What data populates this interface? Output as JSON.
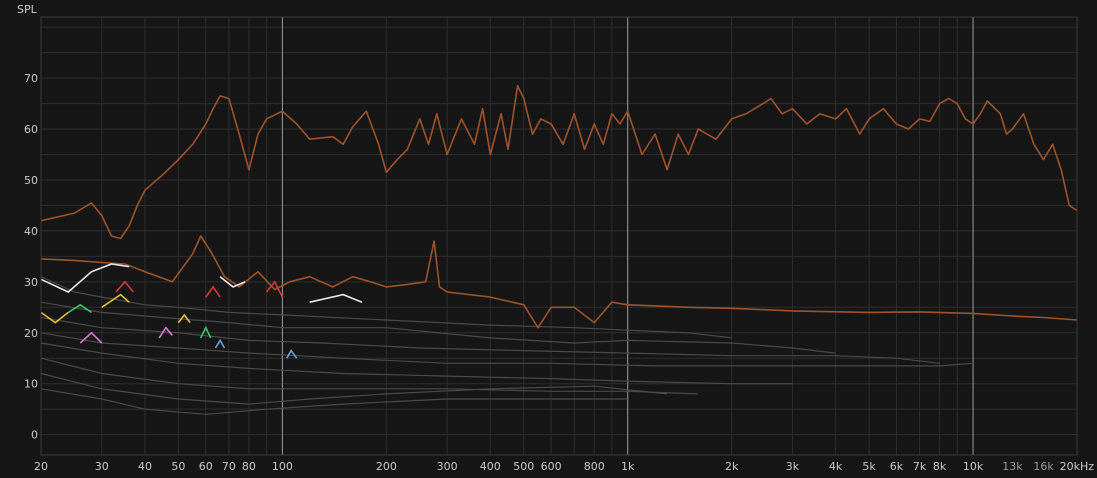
{
  "chart_data": {
    "type": "line",
    "ylabel": "SPL",
    "xscale": "log",
    "xlim": [
      20,
      20000
    ],
    "ylim": [
      -4,
      82
    ],
    "grid": true,
    "x_ticks": [
      {
        "value": 20,
        "label": "20"
      },
      {
        "value": 30,
        "label": "30"
      },
      {
        "value": 40,
        "label": "40"
      },
      {
        "value": 50,
        "label": "50"
      },
      {
        "value": 60,
        "label": "60"
      },
      {
        "value": 70,
        "label": "70"
      },
      {
        "value": 80,
        "label": "80"
      },
      {
        "value": 100,
        "label": "100"
      },
      {
        "value": 200,
        "label": "200"
      },
      {
        "value": 300,
        "label": "300"
      },
      {
        "value": 400,
        "label": "400"
      },
      {
        "value": 500,
        "label": "500"
      },
      {
        "value": 600,
        "label": "600"
      },
      {
        "value": 800,
        "label": "800"
      },
      {
        "value": 1000,
        "label": "1k"
      },
      {
        "value": 2000,
        "label": "2k"
      },
      {
        "value": 3000,
        "label": "3k"
      },
      {
        "value": 4000,
        "label": "4k"
      },
      {
        "value": 5000,
        "label": "5k"
      },
      {
        "value": 6000,
        "label": "6k"
      },
      {
        "value": 7000,
        "label": "7k"
      },
      {
        "value": 8000,
        "label": "8k"
      },
      {
        "value": 10000,
        "label": "10k"
      },
      {
        "value": 13000,
        "label": "13k"
      },
      {
        "value": 16000,
        "label": "16k"
      },
      {
        "value": 20000,
        "label": "20kHz"
      }
    ],
    "y_ticks": [
      0,
      10,
      20,
      30,
      40,
      50,
      60,
      70
    ],
    "colors": {
      "background": "#161616",
      "grid": "#2e2e2e",
      "major_grid": "#9a9a9a",
      "primary": "#a0532a",
      "harmonics": "#4a4a4a",
      "harmonic_peaks": [
        "#e8e8e8",
        "#e2c23a",
        "#d43a3a",
        "#3cc96a",
        "#e07ad8",
        "#6aa0e8"
      ]
    },
    "series": [
      {
        "role": "frequency-response",
        "color": "#a0532a",
        "points": [
          [
            20,
            42
          ],
          [
            25,
            43.5
          ],
          [
            28,
            45.5
          ],
          [
            30,
            43
          ],
          [
            32,
            39
          ],
          [
            34,
            38.5
          ],
          [
            36,
            41
          ],
          [
            38,
            45
          ],
          [
            40,
            48
          ],
          [
            45,
            51
          ],
          [
            50,
            54
          ],
          [
            55,
            57
          ],
          [
            60,
            61
          ],
          [
            63,
            64
          ],
          [
            66,
            66.5
          ],
          [
            70,
            66
          ],
          [
            75,
            59
          ],
          [
            80,
            52
          ],
          [
            85,
            59
          ],
          [
            90,
            62
          ],
          [
            100,
            63.5
          ],
          [
            110,
            61
          ],
          [
            120,
            58
          ],
          [
            140,
            58.5
          ],
          [
            150,
            57
          ],
          [
            160,
            60.5
          ],
          [
            175,
            63.5
          ],
          [
            190,
            57
          ],
          [
            200,
            51.5
          ],
          [
            215,
            54
          ],
          [
            230,
            56
          ],
          [
            250,
            62
          ],
          [
            265,
            57
          ],
          [
            280,
            63
          ],
          [
            300,
            55
          ],
          [
            330,
            62
          ],
          [
            360,
            57
          ],
          [
            380,
            64
          ],
          [
            400,
            55
          ],
          [
            430,
            63
          ],
          [
            450,
            56
          ],
          [
            480,
            68.5
          ],
          [
            500,
            66
          ],
          [
            530,
            59
          ],
          [
            560,
            62
          ],
          [
            600,
            61
          ],
          [
            650,
            57
          ],
          [
            700,
            63
          ],
          [
            750,
            56
          ],
          [
            800,
            61
          ],
          [
            850,
            57
          ],
          [
            900,
            63
          ],
          [
            950,
            61
          ],
          [
            1000,
            63.5
          ],
          [
            1100,
            55
          ],
          [
            1200,
            59
          ],
          [
            1300,
            52
          ],
          [
            1400,
            59
          ],
          [
            1500,
            55
          ],
          [
            1600,
            60
          ],
          [
            1800,
            58
          ],
          [
            2000,
            62
          ],
          [
            2200,
            63
          ],
          [
            2400,
            64.5
          ],
          [
            2600,
            66
          ],
          [
            2800,
            63
          ],
          [
            3000,
            64
          ],
          [
            3300,
            61
          ],
          [
            3600,
            63
          ],
          [
            4000,
            62
          ],
          [
            4300,
            64
          ],
          [
            4700,
            59
          ],
          [
            5000,
            62
          ],
          [
            5500,
            64
          ],
          [
            6000,
            61
          ],
          [
            6500,
            60
          ],
          [
            7000,
            62
          ],
          [
            7500,
            61.5
          ],
          [
            8000,
            65
          ],
          [
            8500,
            66
          ],
          [
            9000,
            65
          ],
          [
            9500,
            62
          ],
          [
            10000,
            61
          ],
          [
            10500,
            63
          ],
          [
            11000,
            65.5
          ],
          [
            12000,
            63
          ],
          [
            12500,
            59
          ],
          [
            13000,
            60
          ],
          [
            14000,
            63
          ],
          [
            15000,
            57
          ],
          [
            16000,
            54
          ],
          [
            17000,
            57
          ],
          [
            18000,
            52
          ],
          [
            19000,
            45
          ],
          [
            20000,
            44
          ]
        ]
      },
      {
        "role": "noise-floor",
        "color": "#a0532a",
        "points": [
          [
            20,
            34.5
          ],
          [
            25,
            34.2
          ],
          [
            30,
            33.8
          ],
          [
            35,
            33.5
          ],
          [
            40,
            32
          ],
          [
            48,
            30
          ],
          [
            55,
            35.5
          ],
          [
            58,
            39
          ],
          [
            62,
            36
          ],
          [
            68,
            31
          ],
          [
            75,
            29
          ],
          [
            85,
            32
          ],
          [
            95,
            28.5
          ],
          [
            105,
            30
          ],
          [
            120,
            31
          ],
          [
            140,
            29
          ],
          [
            160,
            31
          ],
          [
            180,
            30
          ],
          [
            200,
            29
          ],
          [
            230,
            29.5
          ],
          [
            260,
            30
          ],
          [
            275,
            38
          ],
          [
            285,
            29
          ],
          [
            300,
            28
          ],
          [
            400,
            27
          ],
          [
            500,
            25.5
          ],
          [
            550,
            21
          ],
          [
            600,
            25
          ],
          [
            700,
            25
          ],
          [
            800,
            22
          ],
          [
            900,
            26
          ],
          [
            1000,
            25.5
          ],
          [
            1500,
            25
          ],
          [
            2000,
            24.8
          ],
          [
            3000,
            24.3
          ],
          [
            5000,
            24
          ],
          [
            7000,
            24.1
          ],
          [
            10000,
            23.8
          ],
          [
            13000,
            23.3
          ],
          [
            16000,
            23
          ],
          [
            20000,
            22.5
          ]
        ]
      },
      {
        "role": "harmonic",
        "color": "#4a4a4a",
        "points": [
          [
            20,
            31
          ],
          [
            25,
            28
          ],
          [
            30,
            27
          ],
          [
            40,
            25.5
          ],
          [
            50,
            25
          ],
          [
            70,
            24
          ],
          [
            100,
            23.5
          ],
          [
            200,
            22.5
          ],
          [
            400,
            21.5
          ],
          [
            700,
            21
          ],
          [
            1000,
            20.5
          ],
          [
            1500,
            20
          ],
          [
            2000,
            19
          ]
        ]
      },
      {
        "role": "harmonic",
        "color": "#4a4a4a",
        "points": [
          [
            20,
            26
          ],
          [
            30,
            24
          ],
          [
            45,
            23
          ],
          [
            70,
            22
          ],
          [
            100,
            21
          ],
          [
            200,
            21
          ],
          [
            400,
            19
          ],
          [
            700,
            18
          ],
          [
            1000,
            18.5
          ],
          [
            2000,
            18
          ],
          [
            3000,
            17
          ],
          [
            4000,
            16
          ]
        ]
      },
      {
        "role": "harmonic",
        "color": "#4a4a4a",
        "points": [
          [
            20,
            23
          ],
          [
            30,
            21
          ],
          [
            50,
            20
          ],
          [
            80,
            18.5
          ],
          [
            130,
            18
          ],
          [
            250,
            17
          ],
          [
            500,
            16.5
          ],
          [
            1000,
            16
          ],
          [
            2000,
            15.5
          ],
          [
            4000,
            15.5
          ],
          [
            6000,
            15
          ],
          [
            8000,
            14
          ]
        ]
      },
      {
        "role": "harmonic",
        "color": "#4a4a4a",
        "points": [
          [
            20,
            20
          ],
          [
            30,
            18
          ],
          [
            50,
            17
          ],
          [
            80,
            16
          ],
          [
            150,
            15
          ],
          [
            300,
            14
          ],
          [
            600,
            14
          ],
          [
            1200,
            13.5
          ],
          [
            2500,
            13.5
          ],
          [
            5000,
            13.5
          ],
          [
            8000,
            13.5
          ],
          [
            10000,
            14
          ]
        ]
      },
      {
        "role": "harmonic",
        "color": "#4a4a4a",
        "points": [
          [
            20,
            18
          ],
          [
            30,
            16
          ],
          [
            50,
            14
          ],
          [
            80,
            13
          ],
          [
            150,
            12
          ],
          [
            300,
            11.5
          ],
          [
            600,
            11
          ],
          [
            1000,
            10.5
          ],
          [
            2000,
            10
          ],
          [
            3000,
            10
          ]
        ]
      },
      {
        "role": "harmonic",
        "color": "#4a4a4a",
        "points": [
          [
            20,
            15
          ],
          [
            30,
            12
          ],
          [
            50,
            10
          ],
          [
            80,
            9
          ],
          [
            150,
            9
          ],
          [
            300,
            9
          ],
          [
            600,
            8.5
          ],
          [
            1000,
            8.5
          ],
          [
            1600,
            8
          ]
        ]
      },
      {
        "role": "harmonic",
        "color": "#4a4a4a",
        "points": [
          [
            20,
            12
          ],
          [
            30,
            9
          ],
          [
            50,
            7
          ],
          [
            80,
            6
          ],
          [
            120,
            7
          ],
          [
            200,
            8
          ],
          [
            400,
            9
          ],
          [
            800,
            9.5
          ],
          [
            1300,
            8
          ]
        ]
      },
      {
        "role": "harmonic",
        "color": "#4a4a4a",
        "points": [
          [
            20,
            9
          ],
          [
            30,
            7
          ],
          [
            40,
            5
          ],
          [
            60,
            4
          ],
          [
            90,
            5
          ],
          [
            150,
            6
          ],
          [
            300,
            7
          ],
          [
            600,
            7
          ],
          [
            1000,
            7
          ]
        ]
      }
    ],
    "harmonic_peaks": [
      {
        "color": "#e8e8e8",
        "points": [
          [
            20,
            30.5
          ],
          [
            24,
            28
          ],
          [
            28,
            32
          ],
          [
            32,
            33.5
          ],
          [
            36,
            33
          ]
        ]
      },
      {
        "color": "#e8e8e8",
        "points": [
          [
            66,
            31
          ],
          [
            72,
            29
          ],
          [
            78,
            30
          ]
        ]
      },
      {
        "color": "#e8e8e8",
        "points": [
          [
            120,
            26
          ],
          [
            150,
            27.5
          ],
          [
            170,
            26
          ]
        ]
      },
      {
        "color": "#e2c23a",
        "points": [
          [
            20,
            24
          ],
          [
            22,
            22
          ],
          [
            24,
            24
          ]
        ]
      },
      {
        "color": "#e2c23a",
        "points": [
          [
            30,
            25
          ],
          [
            34,
            27.5
          ],
          [
            36,
            26
          ]
        ]
      },
      {
        "color": "#e2c23a",
        "points": [
          [
            50,
            22
          ],
          [
            52,
            23.5
          ],
          [
            54,
            22
          ]
        ]
      },
      {
        "color": "#d43a3a",
        "points": [
          [
            33,
            28
          ],
          [
            35,
            30
          ],
          [
            37,
            28
          ]
        ]
      },
      {
        "color": "#d43a3a",
        "points": [
          [
            60,
            27
          ],
          [
            63,
            29
          ],
          [
            66,
            27
          ]
        ]
      },
      {
        "color": "#d43a3a",
        "points": [
          [
            90,
            28
          ],
          [
            95,
            30
          ],
          [
            100,
            27
          ]
        ]
      },
      {
        "color": "#3cc96a",
        "points": [
          [
            24,
            24
          ],
          [
            26,
            25.5
          ],
          [
            28,
            24
          ]
        ]
      },
      {
        "color": "#3cc96a",
        "points": [
          [
            58,
            19
          ],
          [
            60,
            21
          ],
          [
            62,
            19
          ]
        ]
      },
      {
        "color": "#e07ad8",
        "points": [
          [
            26,
            18
          ],
          [
            28,
            20
          ],
          [
            30,
            18
          ]
        ]
      },
      {
        "color": "#e07ad8",
        "points": [
          [
            44,
            19
          ],
          [
            46,
            21
          ],
          [
            48,
            19.5
          ]
        ]
      },
      {
        "color": "#6aa0e8",
        "points": [
          [
            64,
            17
          ],
          [
            66,
            18.5
          ],
          [
            68,
            17
          ]
        ]
      },
      {
        "color": "#6aa0e8",
        "points": [
          [
            103,
            15
          ],
          [
            106,
            16.5
          ],
          [
            110,
            15
          ]
        ]
      }
    ]
  }
}
